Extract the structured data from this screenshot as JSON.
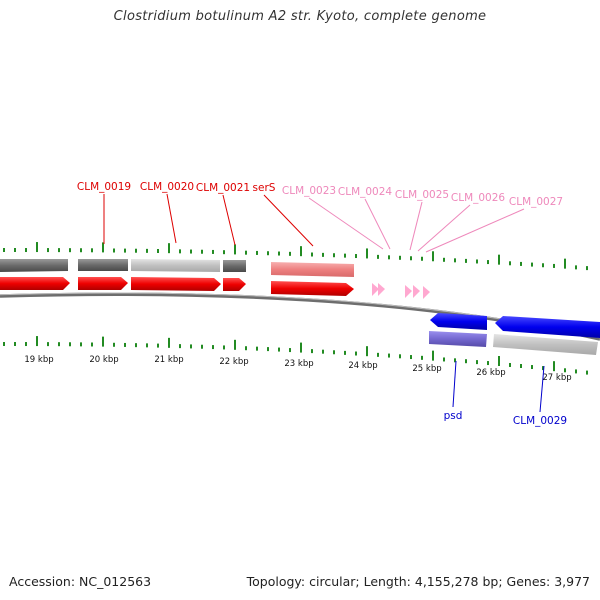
{
  "title": "Clostridium botulinum A2 str. Kyoto, complete genome",
  "footer": {
    "accession": "Accession: NC_012563",
    "summary": "Topology: circular; Length: 4,155,278 bp; Genes: 3,977"
  },
  "colors": {
    "forward_cds": "#ff0000",
    "forward_pseudo": "#f08a8a",
    "forward_rna": "#ffaad4",
    "reverse_cds": "#0000ff",
    "reverse_pseudo": "#7a6fd6",
    "gene_dark": "#707070",
    "gene_light": "#c4c4c4",
    "tick": "#228b22",
    "backbone": "#6e6e6e"
  },
  "kbp_labels": [
    "19 kbp",
    "20 kbp",
    "21 kbp",
    "22 kbp",
    "23 kbp",
    "24 kbp",
    "25 kbp",
    "26 kbp",
    "27 kbp"
  ],
  "genes_top": [
    {
      "name": "CLM_0019",
      "color": "#dd0000"
    },
    {
      "name": "CLM_0020",
      "color": "#dd0000"
    },
    {
      "name": "CLM_0021",
      "color": "#dd0000"
    },
    {
      "name": "serS",
      "color": "#dd0000"
    },
    {
      "name": "CLM_0023",
      "color": "#ee88bb"
    },
    {
      "name": "CLM_0024",
      "color": "#ee88bb"
    },
    {
      "name": "CLM_0025",
      "color": "#ee88bb"
    },
    {
      "name": "CLM_0026",
      "color": "#ee88bb"
    },
    {
      "name": "CLM_0027",
      "color": "#ee88bb"
    }
  ],
  "genes_bottom": [
    {
      "name": "psd",
      "color": "#0000cc"
    },
    {
      "name": "CLM_0029",
      "color": "#0000cc"
    }
  ]
}
